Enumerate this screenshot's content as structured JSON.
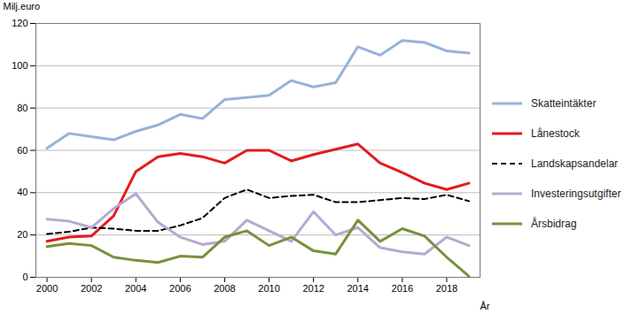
{
  "chart_data": {
    "type": "line",
    "y_label": "Milj.euro",
    "x_label": "År",
    "x": [
      2000,
      2001,
      2002,
      2003,
      2004,
      2005,
      2006,
      2007,
      2008,
      2009,
      2010,
      2011,
      2012,
      2013,
      2014,
      2015,
      2016,
      2017,
      2018,
      2019
    ],
    "xlim": [
      1999.5,
      2019.5
    ],
    "xticks": [
      2000,
      2002,
      2004,
      2006,
      2008,
      2010,
      2012,
      2014,
      2016,
      2018
    ],
    "ylim": [
      0,
      120
    ],
    "yticks": [
      0,
      20,
      40,
      60,
      80,
      100,
      120
    ],
    "grid": true,
    "legend": "right",
    "series": [
      {
        "name": "Skatteintäkter",
        "color": "#95b3d7",
        "line_style": "solid",
        "values": [
          61,
          68,
          66.5,
          65,
          69,
          72,
          77,
          75,
          84,
          85,
          86,
          93,
          90,
          92,
          109,
          105,
          112,
          111,
          107,
          106
        ]
      },
      {
        "name": "Lånestock",
        "color": "#e41a1c",
        "line_style": "solid",
        "values": [
          17,
          19,
          19.5,
          29,
          50,
          57,
          58.5,
          57,
          54,
          60,
          60,
          55,
          58,
          60.5,
          63,
          54,
          49.5,
          44.5,
          41.5,
          44.5
        ]
      },
      {
        "name": "Landskapsandelar",
        "color": "#000000",
        "line_style": "dashed",
        "values": [
          20.5,
          21.5,
          23.5,
          23,
          22,
          22,
          24.5,
          28,
          37.5,
          41.5,
          37.5,
          38.5,
          39,
          35.5,
          35.5,
          36.5,
          37.5,
          37,
          39,
          36
        ]
      },
      {
        "name": "Investeringsutgifter",
        "color": "#b7a9d0",
        "line_style": "solid",
        "values": [
          27.5,
          26.5,
          23.5,
          32.5,
          39.5,
          26,
          19,
          15.5,
          17,
          27,
          22,
          17,
          31,
          20,
          23.5,
          14,
          12,
          11,
          19,
          15
        ]
      },
      {
        "name": "Årsbidrag",
        "color": "#76923c",
        "line_style": "solid",
        "values": [
          14.5,
          16,
          15,
          9.5,
          8,
          7,
          10,
          9.5,
          19,
          22,
          15,
          19,
          12.5,
          11,
          27,
          17,
          23,
          19.5,
          9.5,
          0.5
        ]
      }
    ]
  }
}
